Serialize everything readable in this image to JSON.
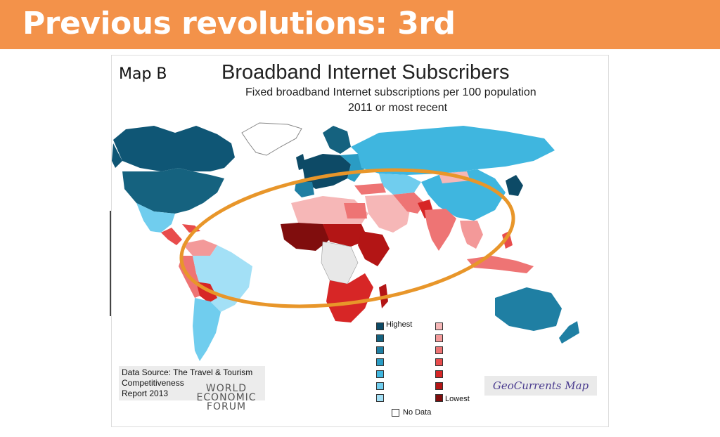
{
  "slide": {
    "title": "Previous revolutions: 3rd",
    "banner_color": "#f3924a"
  },
  "map": {
    "label": "Map B",
    "title": "Broadband Internet Subscribers",
    "subtitle": "Fixed broadband Internet subscriptions per 100 population",
    "subtitle2": "2011 or most recent",
    "highlight_color": "#e8962a",
    "source_lines": [
      "Data Source: The Travel & Tourism",
      "Competitiveness",
      "Report 2013"
    ],
    "wef_lines": [
      "WORLD",
      "ECONOMIC",
      "FORUM"
    ],
    "credit": "GeoCurrents Map",
    "legend": {
      "highest_label": "Highest",
      "lowest_label": "Lowest",
      "no_data_label": "No Data",
      "blue_scale": [
        "#0d4a66",
        "#15627f",
        "#1f7fa3",
        "#2a9cc4",
        "#3fb6df",
        "#70cdee",
        "#a3e0f6"
      ],
      "red_scale": [
        "#f6b7b7",
        "#f39999",
        "#ee7474",
        "#e84c4c",
        "#d72626",
        "#b31515",
        "#800d0d"
      ],
      "no_data_color": "#ffffff"
    }
  }
}
